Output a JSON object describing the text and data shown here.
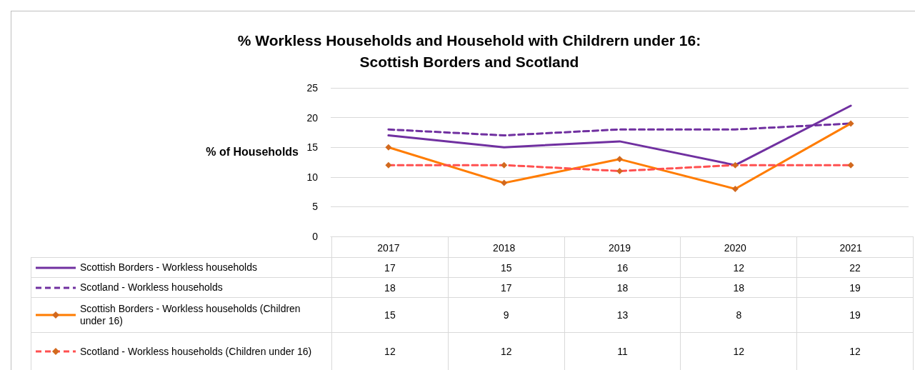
{
  "chart_data": {
    "type": "line",
    "title": "% Workless Households and Household with Childrern under 16:\nScottish Borders and Scotland",
    "ylabel": "% of Households",
    "categories": [
      "2017",
      "2018",
      "2019",
      "2020",
      "2021"
    ],
    "series": [
      {
        "name": "Scottish Borders - Workless households",
        "color": "#7030a0",
        "values": [
          17,
          15,
          16,
          12,
          22
        ],
        "line_style": "solid",
        "marker": "none"
      },
      {
        "name": "Scotland - Workless households",
        "color": "#7030a0",
        "values": [
          18,
          17,
          18,
          18,
          19
        ],
        "line_style": "dashed",
        "marker": "none"
      },
      {
        "name": "Scottish Borders  - Workless households (Children under 16)",
        "color": "#ff7c00",
        "values": [
          15,
          9,
          13,
          8,
          19
        ],
        "line_style": "solid",
        "marker": "diamond"
      },
      {
        "name": "Scotland - Workless households (Children under 16)",
        "color": "#ff5050",
        "values": [
          12,
          12,
          11,
          12,
          12
        ],
        "line_style": "dashed",
        "marker": "diamond"
      }
    ],
    "ylim": [
      0,
      25
    ],
    "yticks": [
      0,
      5,
      10,
      15,
      20,
      25
    ],
    "grid": "y",
    "legend": "bottom",
    "data_labels": true
  }
}
